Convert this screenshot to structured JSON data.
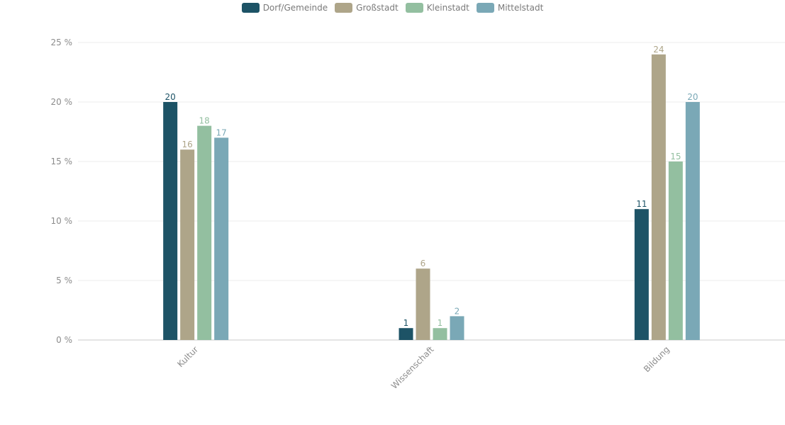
{
  "chart_data": {
    "type": "bar",
    "categories": [
      "Kultur",
      "Wissenschaft",
      "Bildung"
    ],
    "series": [
      {
        "name": "Dorf/Gemeinde",
        "color": "#1d5366",
        "values": [
          20,
          1,
          11
        ]
      },
      {
        "name": "Großstadt",
        "color": "#aea589",
        "values": [
          16,
          6,
          24
        ]
      },
      {
        "name": "Kleinstadt",
        "color": "#93bfa0",
        "values": [
          18,
          1,
          15
        ]
      },
      {
        "name": "Mittelstadt",
        "color": "#7aa8b6",
        "values": [
          17,
          2,
          20
        ]
      }
    ],
    "yticks": [
      "0 %",
      "5 %",
      "10 %",
      "15 %",
      "20 %",
      "25 %"
    ],
    "ylim": [
      0,
      25
    ],
    "xlabel": "",
    "ylabel": "",
    "legend_position": "top-center",
    "grid": true
  }
}
